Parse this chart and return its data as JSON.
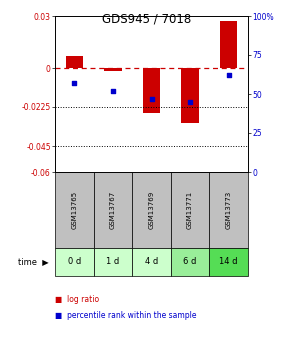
{
  "title": "GDS945 / 7018",
  "samples": [
    "GSM13765",
    "GSM13767",
    "GSM13769",
    "GSM13771",
    "GSM13773"
  ],
  "time_labels": [
    "0 d",
    "1 d",
    "4 d",
    "6 d",
    "14 d"
  ],
  "log_ratio": [
    0.007,
    -0.002,
    -0.026,
    -0.032,
    0.027
  ],
  "percentile_rank": [
    57,
    52,
    47,
    45,
    62
  ],
  "ylim_left": [
    -0.06,
    0.03
  ],
  "ylim_right": [
    0,
    100
  ],
  "yticks_left": [
    0.03,
    0,
    -0.0225,
    -0.045,
    -0.06
  ],
  "yticks_right": [
    100,
    75,
    50,
    25,
    0
  ],
  "ytick_labels_left": [
    "0.03",
    "0",
    "-0.0225",
    "-0.045",
    "-0.06"
  ],
  "ytick_labels_right": [
    "100%",
    "75",
    "50",
    "25",
    "0"
  ],
  "hlines_dotted": [
    -0.0225,
    -0.045
  ],
  "hline_dash": 0,
  "bar_color": "#cc0000",
  "dot_color": "#0000cc",
  "bar_width": 0.45,
  "left_color": "#cc0000",
  "right_color": "#0000cc",
  "sample_bg_color": "#c0c0c0",
  "time_bg_colors": [
    "#ccffcc",
    "#ccffcc",
    "#ccffcc",
    "#99ee99",
    "#55dd55"
  ],
  "legend_bar_label": "log ratio",
  "legend_dot_label": "percentile rank within the sample",
  "time_label": "time"
}
